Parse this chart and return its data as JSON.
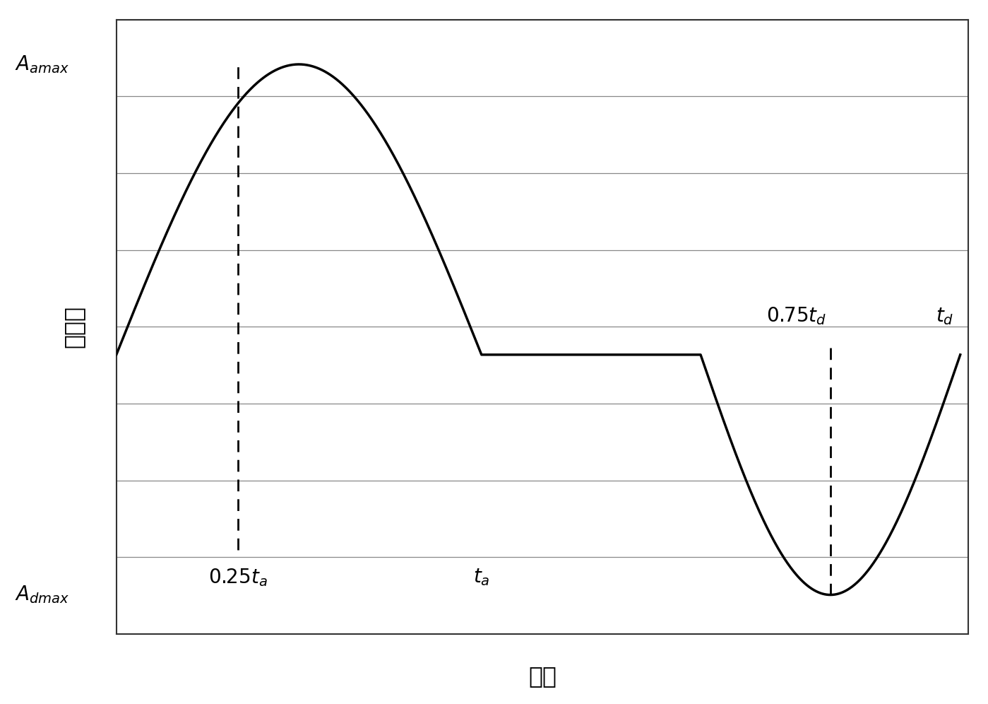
{
  "title": "",
  "xlabel": "时间",
  "ylabel": "加速度",
  "background_color": "#ffffff",
  "grid_color": "#888888",
  "line_color": "#000000",
  "dashed_color": "#000000",
  "text_color": "#000000",
  "y_amax_label": "$A_{amax}$",
  "y_dmax_label": "$A_{dmax}$",
  "label_025ta": "$0.25t_a$",
  "label_ta": "$t_a$",
  "label_075td": "$0.75t_d$",
  "label_td": "$t_d$",
  "ylim": [
    -5.0,
    6.0
  ],
  "xlim": [
    0,
    10.5
  ],
  "y_amax": 5.2,
  "y_dmax": -4.3,
  "y_zero": 0.0,
  "x_025ta": 1.5,
  "x_ta": 4.5,
  "x_075td": 8.8,
  "x_td": 10.0,
  "x_start": 0.0,
  "x_end": 10.5,
  "figsize": [
    13.99,
    9.96
  ],
  "dpi": 100,
  "linewidth": 2.5,
  "fontsize_axlabel": 24,
  "fontsize_ticklabel": 20,
  "fontsize_annot": 20,
  "n_hlines": 9
}
